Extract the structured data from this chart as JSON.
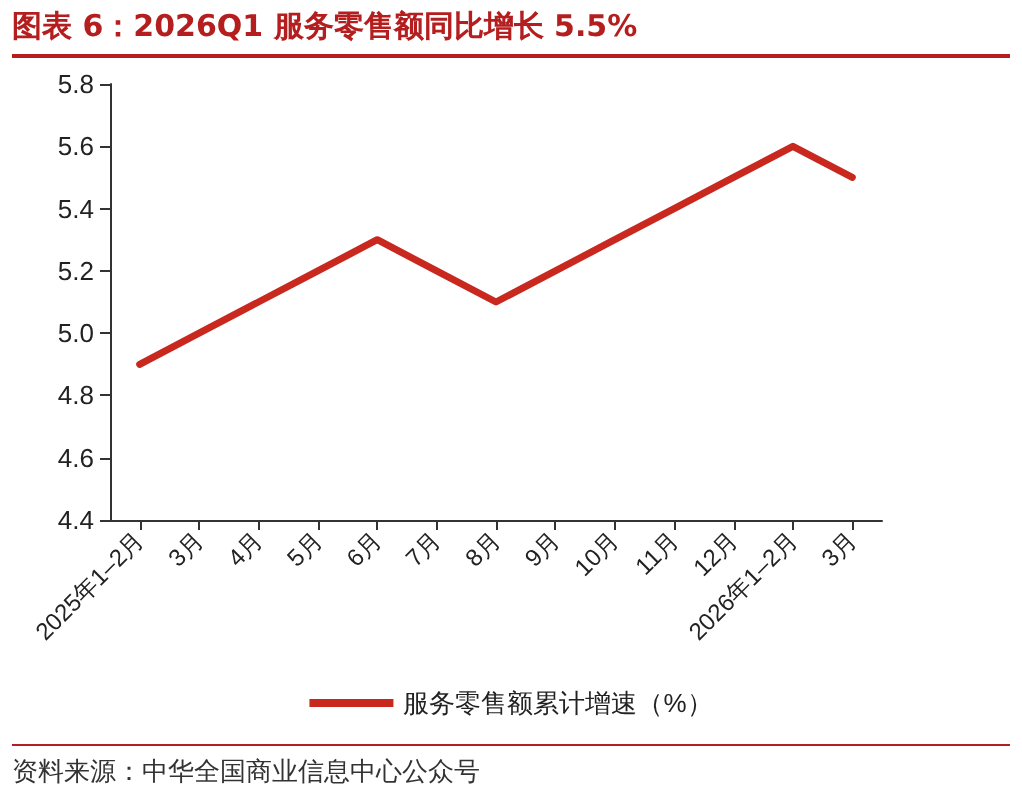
{
  "chart_data": {
    "type": "line",
    "title": "图表 6：2026Q1 服务零售额同比增长 5.5%",
    "categories": [
      "2025年1–2月",
      "3月",
      "4月",
      "5月",
      "6月",
      "7月",
      "8月",
      "9月",
      "10月",
      "11月",
      "12月",
      "2026年1–2月",
      "3月"
    ],
    "series": [
      {
        "name": "服务零售额累计增速（%）",
        "color": "#c8281e",
        "values": [
          4.9,
          5.0,
          5.1,
          5.2,
          5.3,
          5.2,
          5.1,
          5.2,
          5.3,
          5.4,
          5.5,
          5.6,
          5.5
        ]
      }
    ],
    "ylim": [
      4.4,
      5.8
    ],
    "yticks": [
      {
        "value": 4.4,
        "label": "4.4"
      },
      {
        "value": 4.6,
        "label": "4.6"
      },
      {
        "value": 4.8,
        "label": "4.8"
      },
      {
        "value": 5.0,
        "label": "5.0"
      },
      {
        "value": 5.2,
        "label": "5.2"
      },
      {
        "value": 5.4,
        "label": "5.4"
      },
      {
        "value": 5.6,
        "label": "5.6"
      },
      {
        "value": 5.8,
        "label": "5.8"
      }
    ],
    "grid": false,
    "legend": "bottom",
    "marker": "none",
    "line_style": "solid",
    "annotations": [
      "资料来源：中华全国商业信息中心公众号"
    ]
  }
}
